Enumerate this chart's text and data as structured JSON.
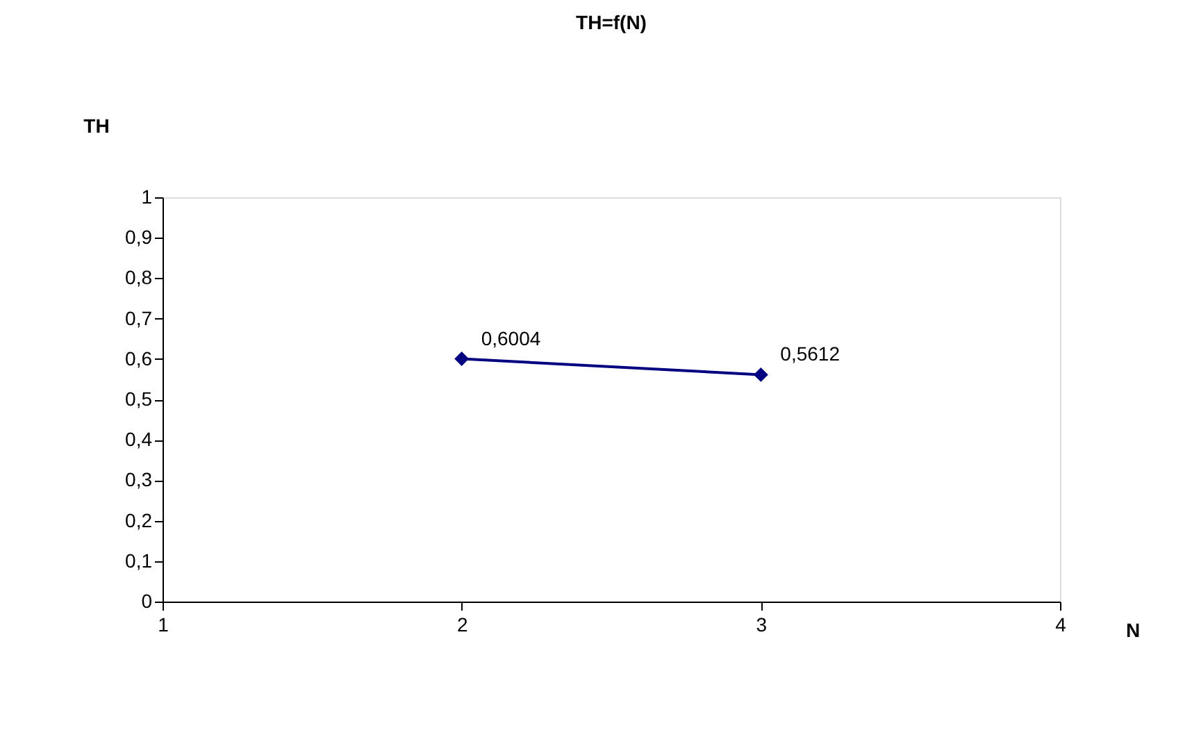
{
  "chart_data": {
    "type": "line",
    "title": "TH=f(N)",
    "xlabel": "N",
    "ylabel": "TH",
    "x": [
      2,
      3
    ],
    "series": [
      {
        "color": "#000080",
        "values": [
          0.6004,
          0.5612
        ],
        "value_labels": [
          "0,6004",
          "0,5612"
        ]
      }
    ],
    "xlim": [
      1,
      4
    ],
    "xticks": [
      1,
      2,
      3,
      4
    ],
    "ylim": [
      0,
      1
    ],
    "yticks": [
      0,
      {
        "value": 0.1,
        "label": "0,1"
      },
      {
        "value": 0.2,
        "label": "0,2"
      },
      {
        "value": 0.3,
        "label": "0,3"
      },
      {
        "value": 0.4,
        "label": "0,4"
      },
      {
        "value": 0.5,
        "label": "0,5"
      },
      {
        "value": 0.6,
        "label": "0,6"
      },
      {
        "value": 0.7,
        "label": "0,7"
      },
      {
        "value": 0.8,
        "label": "0,8"
      },
      {
        "value": 0.9,
        "label": "0,9"
      },
      1
    ],
    "marker": "diamond",
    "line_style": "solid",
    "grid": false
  }
}
